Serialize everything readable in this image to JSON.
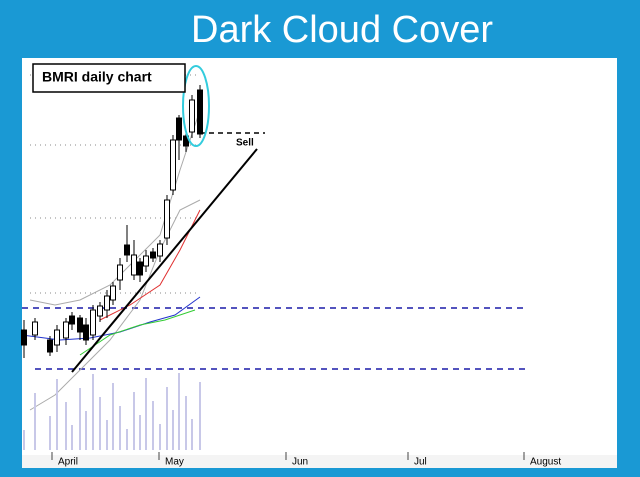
{
  "header": {
    "title": "Dark Cloud Cover"
  },
  "chart": {
    "legend": "BMRI daily chart",
    "annotation": "Sell",
    "months": [
      "April",
      "May",
      "Jun",
      "Jul",
      "August"
    ]
  }
}
